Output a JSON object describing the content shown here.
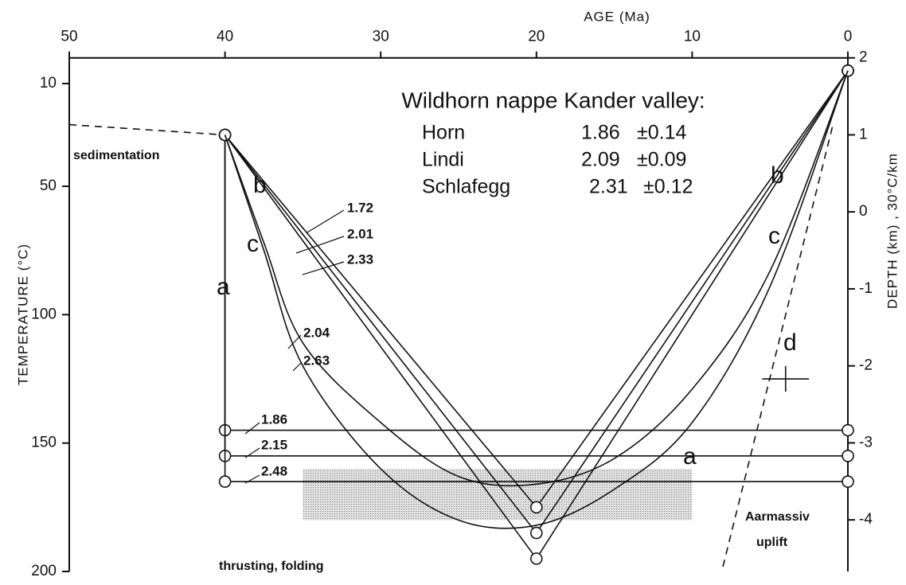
{
  "chart_data": {
    "type": "line",
    "title": "Wildhorn nappe Kander valley:",
    "xlabel": "AGE (Ma)",
    "ylabel": "TEMPERATURE (°C)",
    "y2label": "DEPTH (km) , 30°C/km",
    "xlim": [
      50,
      0
    ],
    "xticks": [
      50,
      40,
      30,
      20,
      10,
      0
    ],
    "ylim": [
      0,
      200
    ],
    "yticks": [
      10,
      50,
      100,
      150,
      200
    ],
    "y2lim": [
      2,
      -4.67
    ],
    "y2ticks": [
      2,
      1,
      0,
      -1,
      -2,
      -3,
      -4
    ],
    "inset_table": {
      "rows": [
        [
          "Horn",
          "1.86",
          "±0.14"
        ],
        [
          "Lindi",
          "2.09",
          "±0.09"
        ],
        [
          "Schlafegg",
          "2.31",
          "±0.12"
        ]
      ]
    },
    "annotations": [
      "sedimentation",
      "thrusting, folding",
      "Aarmassiv",
      "uplift",
      "a",
      "b",
      "c",
      "d"
    ],
    "shaded_region": {
      "x": [
        35,
        10
      ],
      "y": [
        160,
        180
      ]
    },
    "error_point": {
      "x": 4,
      "y": 125,
      "xerr": 1.5,
      "yerr": 5
    },
    "series": [
      {
        "name": "sedimentation",
        "x": [
          50,
          40
        ],
        "values": [
          26,
          30
        ],
        "dash": true,
        "markers": false
      },
      {
        "name": "1.86",
        "x": [
          40,
          40,
          0
        ],
        "values": [
          30,
          145,
          145
        ],
        "dash": false,
        "markers": true
      },
      {
        "name": "2.15",
        "x": [
          40,
          40,
          0
        ],
        "values": [
          30,
          155,
          155
        ],
        "dash": false,
        "markers": true
      },
      {
        "name": "2.48",
        "x": [
          40,
          40,
          0
        ],
        "values": [
          30,
          165,
          165
        ],
        "dash": false,
        "markers": true
      },
      {
        "name": "1.72",
        "x": [
          40,
          20,
          0
        ],
        "values": [
          30,
          175,
          5
        ],
        "dash": false,
        "markers": true
      },
      {
        "name": "2.01",
        "x": [
          40,
          20,
          0
        ],
        "values": [
          30,
          185,
          5
        ],
        "dash": false,
        "markers": true
      },
      {
        "name": "2.33",
        "x": [
          40,
          20,
          0
        ],
        "values": [
          30,
          195,
          5
        ],
        "dash": false,
        "markers": true
      },
      {
        "name": "2.04",
        "x": [
          40,
          37.5,
          35,
          30,
          25,
          20,
          15,
          10,
          5,
          0
        ],
        "values": [
          30,
          72,
          111,
          142,
          163,
          166,
          156,
          129,
          83,
          5
        ],
        "dash": false,
        "markers": false
      },
      {
        "name": "2.63",
        "x": [
          40,
          37.5,
          35,
          30,
          25,
          20,
          15,
          10,
          5,
          0
        ],
        "values": [
          30,
          75,
          120,
          160,
          180,
          182,
          168,
          142,
          89,
          5
        ],
        "dash": false,
        "markers": false
      },
      {
        "name": "d",
        "x": [
          1,
          8.1
        ],
        "values": [
          27,
          200
        ],
        "dash": true,
        "markers": false
      }
    ]
  }
}
